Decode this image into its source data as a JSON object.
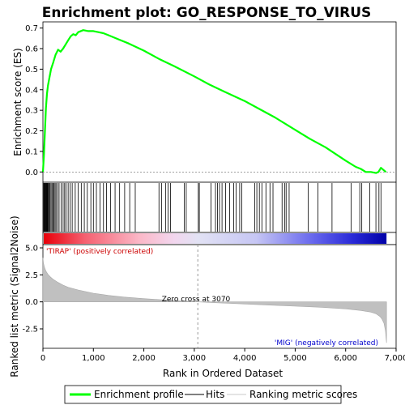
{
  "chart_data": {
    "type": "line",
    "title": "Enrichment plot: GO_RESPONSE_TO_VIRUS",
    "xlabel": "Rank in Ordered Dataset",
    "ylabel_top": "Enrichment score (ES)",
    "ylabel_bottom": "Ranked list metric (Signal2Noise)",
    "xlim": [
      0,
      7000
    ],
    "x_ticks": [
      0,
      1000,
      2000,
      3000,
      4000,
      5000,
      6000,
      7000
    ],
    "x_tick_labels": [
      "0",
      "1,000",
      "2,000",
      "3,000",
      "4,000",
      "5,000",
      "6,000",
      "7,000"
    ],
    "es_ylim": [
      -0.05,
      0.73
    ],
    "es_ticks": [
      0.0,
      0.1,
      0.2,
      0.3,
      0.4,
      0.5,
      0.6,
      0.7
    ],
    "es_tick_labels": [
      "0.0",
      "0.1",
      "0.2",
      "0.3",
      "0.4",
      "0.5",
      "0.6",
      "0.7"
    ],
    "metric_ylim": [
      -4.3,
      5.3
    ],
    "metric_ticks": [
      5.0,
      2.5,
      0.0,
      -2.5
    ],
    "metric_tick_labels": [
      "5.0",
      "2.5",
      "0.0",
      "-2.5"
    ],
    "es_curve": {
      "name": "Enrichment profile",
      "color": "#00ff00",
      "x": [
        0,
        20,
        40,
        60,
        80,
        100,
        130,
        160,
        200,
        250,
        300,
        350,
        400,
        450,
        500,
        550,
        600,
        650,
        700,
        800,
        900,
        1000,
        1100,
        1200,
        1300,
        1500,
        1700,
        2000,
        2300,
        2600,
        3000,
        3300,
        3600,
        4000,
        4300,
        4600,
        4800,
        5000,
        5300,
        5600,
        6000,
        6200,
        6300,
        6400,
        6500,
        6600,
        6650,
        6700,
        6750,
        6800
      ],
      "y": [
        0.0,
        0.08,
        0.2,
        0.31,
        0.38,
        0.42,
        0.46,
        0.5,
        0.53,
        0.57,
        0.595,
        0.585,
        0.6,
        0.62,
        0.64,
        0.66,
        0.67,
        0.665,
        0.68,
        0.69,
        0.685,
        0.685,
        0.68,
        0.675,
        0.665,
        0.645,
        0.625,
        0.59,
        0.55,
        0.515,
        0.465,
        0.425,
        0.39,
        0.345,
        0.305,
        0.265,
        0.235,
        0.205,
        0.16,
        0.12,
        0.055,
        0.025,
        0.015,
        0.0,
        0.0,
        -0.005,
        0.0,
        0.02,
        0.01,
        0.0
      ]
    },
    "hits": [
      15,
      25,
      35,
      45,
      55,
      65,
      75,
      85,
      95,
      110,
      125,
      140,
      160,
      180,
      200,
      220,
      240,
      260,
      290,
      320,
      360,
      400,
      430,
      460,
      500,
      540,
      580,
      640,
      700,
      760,
      820,
      880,
      950,
      1000,
      1060,
      1130,
      1200,
      1260,
      1340,
      1430,
      1520,
      1620,
      1720,
      1830,
      2300,
      2350,
      2430,
      2480,
      2530,
      2800,
      2840,
      3080,
      3100,
      3330,
      3420,
      3460,
      3500,
      3550,
      3620,
      3700,
      3780,
      3830,
      3900,
      3940,
      4200,
      4240,
      4290,
      4340,
      4420,
      4500,
      4560,
      4740,
      4790,
      4820,
      4880,
      5260,
      5450,
      5730,
      6110,
      6280,
      6320,
      6480,
      6600,
      6660,
      6700
    ],
    "hits_name": "Hits",
    "metric_curve": {
      "name": "Ranking metric scores",
      "x": [
        0,
        10,
        30,
        60,
        100,
        150,
        200,
        300,
        400,
        500,
        700,
        1000,
        1300,
        1600,
        2000,
        2500,
        3070,
        3500,
        4000,
        4500,
        5000,
        5500,
        6000,
        6300,
        6500,
        6600,
        6680,
        6720,
        6760,
        6790,
        6810
      ],
      "y": [
        4.1,
        3.6,
        3.2,
        2.85,
        2.55,
        2.3,
        2.1,
        1.8,
        1.55,
        1.35,
        1.1,
        0.8,
        0.6,
        0.45,
        0.3,
        0.15,
        0.0,
        -0.1,
        -0.2,
        -0.3,
        -0.4,
        -0.5,
        -0.65,
        -0.8,
        -0.95,
        -1.1,
        -1.35,
        -1.6,
        -2.0,
        -2.7,
        -3.8
      ]
    },
    "zero_cross_label": "Zero cross at 3070",
    "zero_cross_x": 3070,
    "pos_label": "'TIRAP' (positively correlated)",
    "neg_label": "'MIG' (negatively correlated)",
    "pos_color": "#cc0000",
    "neg_color": "#0000cc",
    "legend": [
      "Enrichment profile",
      "Hits",
      "Ranking metric scores"
    ]
  }
}
